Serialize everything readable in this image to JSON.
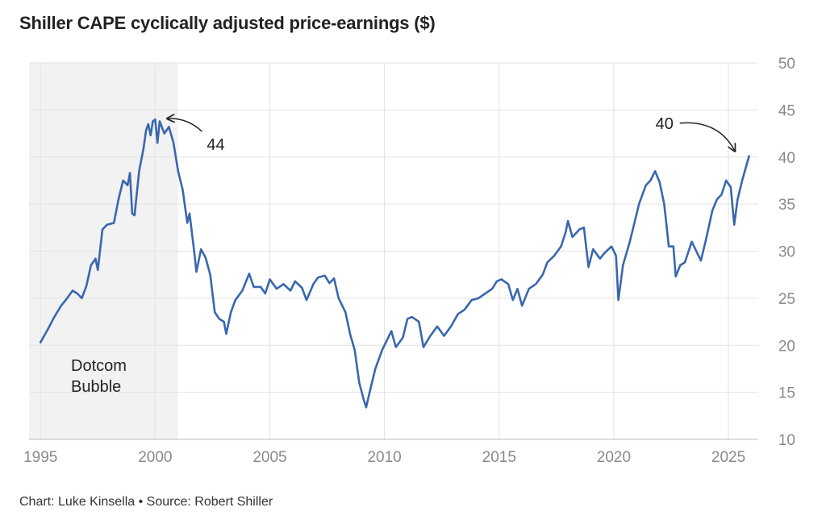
{
  "chart_data": {
    "type": "line",
    "title": "Shiller CAPE cyclically adjusted price-earnings ($)",
    "xlabel": "",
    "ylabel": "",
    "xlim": [
      1994.5,
      2026.3
    ],
    "ylim": [
      10,
      50
    ],
    "x_ticks": [
      1995,
      2000,
      2005,
      2010,
      2015,
      2020,
      2025
    ],
    "y_ticks": [
      10,
      15,
      20,
      25,
      30,
      35,
      40,
      45,
      50
    ],
    "y_axis_side": "right",
    "grid": true,
    "shaded_region": {
      "x_start": 1994.5,
      "x_end": 2001.0,
      "label": [
        "Dotcom",
        "Bubble"
      ]
    },
    "annotations": [
      {
        "text": "44",
        "x": 2000.0,
        "y": 44
      },
      {
        "text": "40",
        "x": 2025.9,
        "y": 40
      }
    ],
    "series": [
      {
        "name": "Shiller CAPE",
        "color": "#3a67ad",
        "points": [
          [
            1995.0,
            20.3
          ],
          [
            1995.3,
            21.6
          ],
          [
            1995.6,
            23.0
          ],
          [
            1995.9,
            24.2
          ],
          [
            1996.1,
            24.8
          ],
          [
            1996.4,
            25.8
          ],
          [
            1996.6,
            25.5
          ],
          [
            1996.8,
            25.0
          ],
          [
            1997.0,
            26.3
          ],
          [
            1997.2,
            28.5
          ],
          [
            1997.4,
            29.2
          ],
          [
            1997.5,
            28.0
          ],
          [
            1997.7,
            32.3
          ],
          [
            1997.9,
            32.8
          ],
          [
            1998.2,
            33.0
          ],
          [
            1998.4,
            35.5
          ],
          [
            1998.6,
            37.5
          ],
          [
            1998.8,
            37.0
          ],
          [
            1998.9,
            38.3
          ],
          [
            1999.0,
            34.0
          ],
          [
            1999.1,
            33.8
          ],
          [
            1999.3,
            38.5
          ],
          [
            1999.5,
            41.0
          ],
          [
            1999.6,
            42.8
          ],
          [
            1999.7,
            43.5
          ],
          [
            1999.8,
            42.3
          ],
          [
            1999.9,
            43.8
          ],
          [
            2000.0,
            44.0
          ],
          [
            2000.1,
            41.5
          ],
          [
            2000.2,
            43.8
          ],
          [
            2000.4,
            42.5
          ],
          [
            2000.6,
            43.2
          ],
          [
            2000.8,
            41.5
          ],
          [
            2001.0,
            38.5
          ],
          [
            2001.2,
            36.5
          ],
          [
            2001.4,
            33.0
          ],
          [
            2001.5,
            34.0
          ],
          [
            2001.7,
            30.0
          ],
          [
            2001.8,
            27.8
          ],
          [
            2002.0,
            30.2
          ],
          [
            2002.2,
            29.3
          ],
          [
            2002.4,
            27.5
          ],
          [
            2002.6,
            23.5
          ],
          [
            2002.8,
            22.8
          ],
          [
            2003.0,
            22.5
          ],
          [
            2003.1,
            21.2
          ],
          [
            2003.3,
            23.5
          ],
          [
            2003.5,
            24.8
          ],
          [
            2003.8,
            25.8
          ],
          [
            2004.1,
            27.6
          ],
          [
            2004.3,
            26.2
          ],
          [
            2004.6,
            26.2
          ],
          [
            2004.8,
            25.5
          ],
          [
            2005.0,
            27.0
          ],
          [
            2005.3,
            26.0
          ],
          [
            2005.6,
            26.5
          ],
          [
            2005.9,
            25.8
          ],
          [
            2006.1,
            26.8
          ],
          [
            2006.4,
            26.1
          ],
          [
            2006.6,
            24.8
          ],
          [
            2006.9,
            26.5
          ],
          [
            2007.1,
            27.2
          ],
          [
            2007.4,
            27.4
          ],
          [
            2007.6,
            26.6
          ],
          [
            2007.8,
            27.1
          ],
          [
            2008.0,
            25.0
          ],
          [
            2008.3,
            23.5
          ],
          [
            2008.5,
            21.2
          ],
          [
            2008.7,
            19.5
          ],
          [
            2008.9,
            16.0
          ],
          [
            2009.1,
            14.2
          ],
          [
            2009.2,
            13.4
          ],
          [
            2009.4,
            15.5
          ],
          [
            2009.6,
            17.5
          ],
          [
            2009.9,
            19.5
          ],
          [
            2010.1,
            20.5
          ],
          [
            2010.3,
            21.5
          ],
          [
            2010.5,
            19.8
          ],
          [
            2010.8,
            20.8
          ],
          [
            2011.0,
            22.8
          ],
          [
            2011.2,
            23.0
          ],
          [
            2011.5,
            22.5
          ],
          [
            2011.7,
            19.8
          ],
          [
            2012.0,
            21.0
          ],
          [
            2012.3,
            22.0
          ],
          [
            2012.6,
            21.0
          ],
          [
            2012.9,
            22.0
          ],
          [
            2013.2,
            23.3
          ],
          [
            2013.5,
            23.8
          ],
          [
            2013.8,
            24.8
          ],
          [
            2014.1,
            25.0
          ],
          [
            2014.4,
            25.5
          ],
          [
            2014.7,
            26.0
          ],
          [
            2014.9,
            26.8
          ],
          [
            2015.1,
            27.0
          ],
          [
            2015.4,
            26.5
          ],
          [
            2015.6,
            24.8
          ],
          [
            2015.8,
            26.0
          ],
          [
            2016.0,
            24.2
          ],
          [
            2016.3,
            26.0
          ],
          [
            2016.6,
            26.5
          ],
          [
            2016.9,
            27.5
          ],
          [
            2017.1,
            28.8
          ],
          [
            2017.4,
            29.5
          ],
          [
            2017.7,
            30.5
          ],
          [
            2017.9,
            32.0
          ],
          [
            2018.0,
            33.2
          ],
          [
            2018.2,
            31.5
          ],
          [
            2018.5,
            32.3
          ],
          [
            2018.7,
            32.5
          ],
          [
            2018.9,
            28.3
          ],
          [
            2019.1,
            30.2
          ],
          [
            2019.4,
            29.2
          ],
          [
            2019.6,
            29.8
          ],
          [
            2019.9,
            30.5
          ],
          [
            2020.1,
            29.5
          ],
          [
            2020.2,
            24.8
          ],
          [
            2020.4,
            28.5
          ],
          [
            2020.7,
            31.0
          ],
          [
            2020.9,
            33.0
          ],
          [
            2021.1,
            35.0
          ],
          [
            2021.4,
            37.0
          ],
          [
            2021.6,
            37.5
          ],
          [
            2021.8,
            38.5
          ],
          [
            2022.0,
            37.3
          ],
          [
            2022.2,
            35.0
          ],
          [
            2022.4,
            30.5
          ],
          [
            2022.6,
            30.5
          ],
          [
            2022.7,
            27.3
          ],
          [
            2022.9,
            28.5
          ],
          [
            2023.1,
            28.8
          ],
          [
            2023.4,
            31.0
          ],
          [
            2023.6,
            30.0
          ],
          [
            2023.8,
            29.0
          ],
          [
            2024.0,
            31.0
          ],
          [
            2024.3,
            34.3
          ],
          [
            2024.5,
            35.5
          ],
          [
            2024.7,
            36.0
          ],
          [
            2024.9,
            37.5
          ],
          [
            2025.1,
            36.8
          ],
          [
            2025.25,
            32.8
          ],
          [
            2025.4,
            35.5
          ],
          [
            2025.6,
            37.5
          ],
          [
            2025.9,
            40.1
          ]
        ]
      }
    ]
  },
  "footer": {
    "source": "Chart: Luke Kinsella • Source: Robert Shiller"
  }
}
